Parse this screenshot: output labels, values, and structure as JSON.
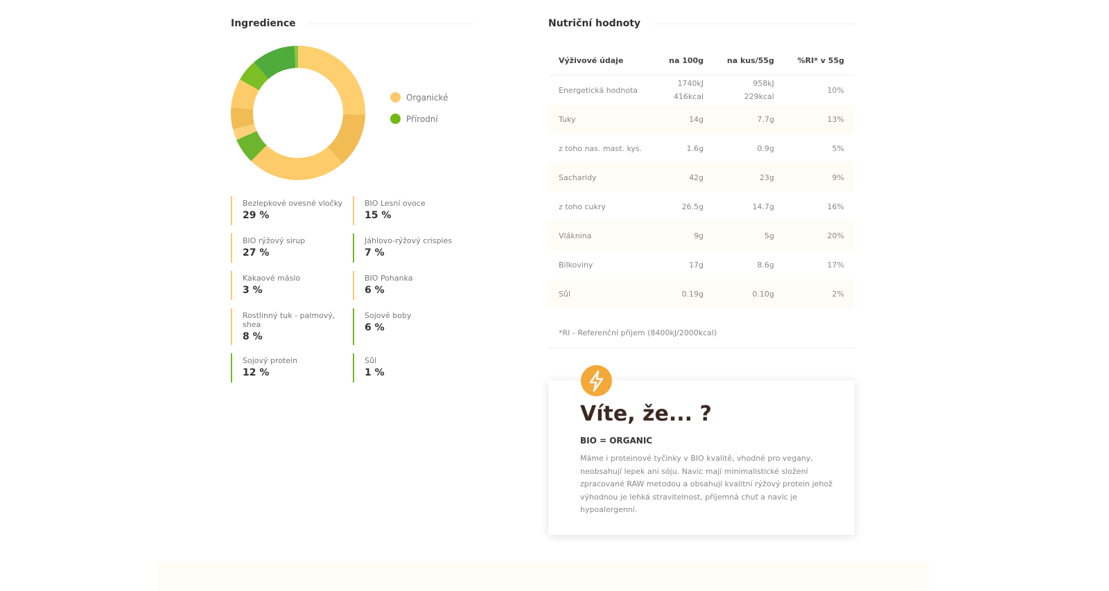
{
  "ingredients": {
    "title": "Ingredience",
    "legend": [
      {
        "name": "Organické",
        "color": "#fdc96b"
      },
      {
        "name": "Přírodní",
        "color": "#74b816"
      }
    ],
    "items": [
      {
        "name": "Bezlepkové ovesné vločky",
        "value": 29,
        "label": "29 %",
        "group": 0,
        "color": "#fdcf6f"
      },
      {
        "name": "BIO Lesní ovoce",
        "value": 15,
        "label": "15 %",
        "group": 0,
        "color": "#f1bc54"
      },
      {
        "name": "BIO rýžový sirup",
        "value": 27,
        "label": "27 %",
        "group": 0,
        "color": "#fdcb6a"
      },
      {
        "name": "Jáhlovo-rýžový crispies",
        "value": 7,
        "label": "7 %",
        "group": 1,
        "color": "#6cb52c"
      },
      {
        "name": "Kakaové máslo",
        "value": 3,
        "label": "3 %",
        "group": 0,
        "color": "#fdd07a"
      },
      {
        "name": "BIO Pohanka",
        "value": 6,
        "label": "6 %",
        "group": 0,
        "color": "#f1bc54"
      },
      {
        "name": "Rostlinný tuk - palmový, shea",
        "value": 8,
        "label": "8 %",
        "group": 0,
        "color": "#fdcb6a"
      },
      {
        "name": "Sojové boby",
        "value": 6,
        "label": "6 %",
        "group": 1,
        "color": "#7cbf24"
      },
      {
        "name": "Sojový protein",
        "value": 12,
        "label": "12 %",
        "group": 1,
        "color": "#4fab3c"
      },
      {
        "name": "Sůl",
        "value": 1,
        "label": "1 %",
        "group": 1,
        "color": "#8cc63f"
      }
    ]
  },
  "nutrition": {
    "title": "Nutriční hodnoty",
    "header": [
      "Výživové údaje",
      "na 100g",
      "na kus/55g",
      "%RI* v 55g"
    ],
    "rows": [
      [
        "Energetická hodnota",
        [
          "1740kJ",
          "416kcal"
        ],
        [
          "958kJ",
          "229kcal"
        ],
        "10%"
      ],
      [
        "Tuky",
        "14g",
        "7.7g",
        "13%"
      ],
      [
        "z toho nas. mast. kys.",
        "1.6g",
        "0.9g",
        "5%"
      ],
      [
        "Sacharidy",
        "42g",
        "23g",
        "9%"
      ],
      [
        "z toho cukry",
        "26.5g",
        "14.7g",
        "16%"
      ],
      [
        "Vláknina",
        "9g",
        "5g",
        "20%"
      ],
      [
        "Bílkoviny",
        "17g",
        "8.6g",
        "17%"
      ],
      [
        "Sůl",
        "0.19g",
        "0.10g",
        "2%"
      ]
    ],
    "note": "*RI - Referenční příjem (8400kJ/2000kcal)"
  },
  "callout": {
    "title": "Víte, že... ?",
    "subtitle": "BIO = ORGANIC",
    "text": "Máme i proteinové tyčinky v BIO kvalitě, vhodné pro vegany, neobsahují lepek ani sóju. Navíc mají minimalistické složení zpracované RAW metodou a obsahují kvalitní rýžový protein jehož výhodnou je lehká stravitelnost, příjemná chuť a navíc je hypoalergenní."
  }
}
